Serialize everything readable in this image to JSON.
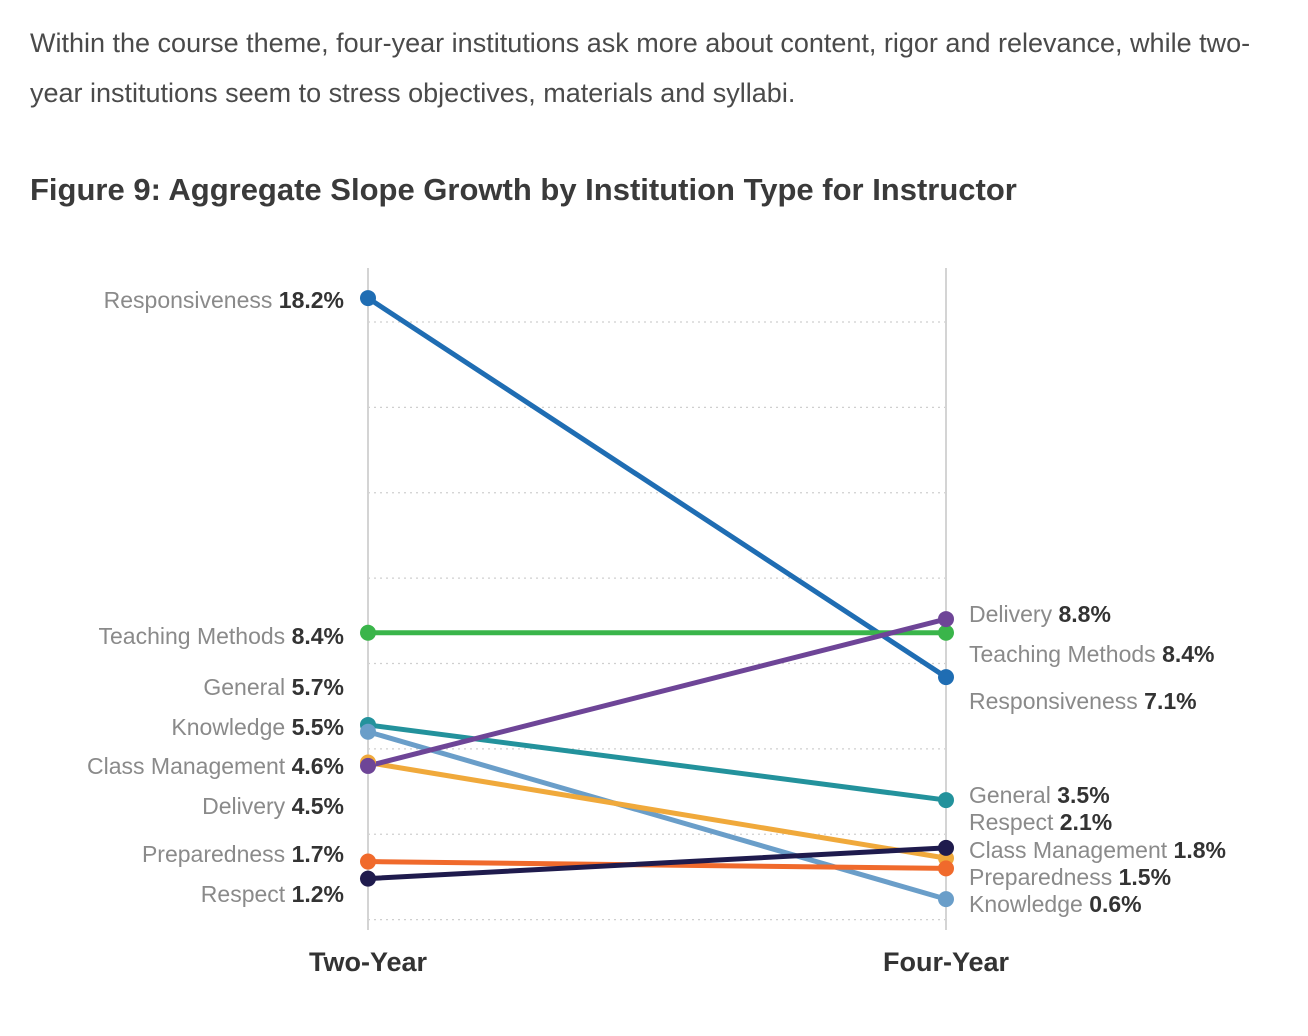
{
  "intro_text": "Within the course theme, four-year institutions ask more about content, rigor and relevance, while two-year institutions seem to stress objectives, materials and syllabi.",
  "chart_data": {
    "type": "line",
    "chart_kind": "slope",
    "title": "Figure 9: Aggregate Slope Growth by Institution Type for Instructor",
    "categories": [
      "Two-Year",
      "Four-Year"
    ],
    "value_format": "percent",
    "ylim": [
      0,
      19
    ],
    "grid": true,
    "series": [
      {
        "name": "Responsiveness",
        "values": [
          18.2,
          7.1
        ],
        "labels": [
          "18.2%",
          "7.1%"
        ],
        "color": "#1f6db3"
      },
      {
        "name": "Teaching Methods",
        "values": [
          8.4,
          8.4
        ],
        "labels": [
          "8.4%",
          "8.4%"
        ],
        "color": "#3ab54a"
      },
      {
        "name": "General",
        "values": [
          5.7,
          3.5
        ],
        "labels": [
          "5.7%",
          "3.5%"
        ],
        "color": "#23929c"
      },
      {
        "name": "Knowledge",
        "values": [
          5.5,
          0.6
        ],
        "labels": [
          "5.5%",
          "0.6%"
        ],
        "color": "#6a9ec9"
      },
      {
        "name": "Class Management",
        "values": [
          4.6,
          1.8
        ],
        "labels": [
          "4.6%",
          "1.8%"
        ],
        "color": "#f0a93b"
      },
      {
        "name": "Delivery",
        "values": [
          4.5,
          8.8
        ],
        "labels": [
          "4.5%",
          "8.8%"
        ],
        "color": "#6e4597"
      },
      {
        "name": "Preparedness",
        "values": [
          1.7,
          1.5
        ],
        "labels": [
          "1.7%",
          "1.5%"
        ],
        "color": "#f06a2c"
      },
      {
        "name": "Respect",
        "values": [
          1.2,
          2.1
        ],
        "labels": [
          "1.2%",
          "2.1%"
        ],
        "color": "#1f1b4d"
      }
    ],
    "left_label_order": [
      "Responsiveness",
      "Teaching Methods",
      "General",
      "Knowledge",
      "Class Management",
      "Delivery",
      "Preparedness",
      "Respect"
    ],
    "right_label_order": [
      "Delivery",
      "Teaching Methods",
      "Responsiveness",
      "General",
      "Respect",
      "Class Management",
      "Preparedness",
      "Knowledge"
    ]
  }
}
